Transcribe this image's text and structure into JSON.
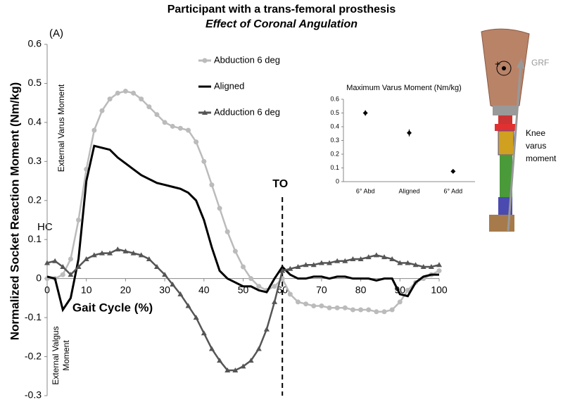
{
  "chart_data": [
    {
      "type": "line",
      "title": "Participant with a trans-femoral prosthesis",
      "subtitle": "Effect of Coronal Angulation",
      "panel_label": "(A)",
      "x_label": "Gait Cycle (%)",
      "y_label": "Normalized Socket Reaction Moment (Nm/kg)",
      "annotations": {
        "hc": "HC",
        "to": {
          "label": "TO",
          "x": 60
        },
        "varus": "External Varus Moment",
        "valgus": [
          "External Valgus",
          "Moment"
        ],
        "grf": "GRF",
        "knee": [
          "Knee",
          "varus",
          "moment"
        ]
      },
      "legend": "upper center",
      "xlim": [
        0,
        100
      ],
      "xticks": [
        0,
        10,
        20,
        30,
        40,
        50,
        60,
        70,
        80,
        90,
        100
      ],
      "ylim": [
        -0.3,
        0.6
      ],
      "yticks": [
        -0.3,
        -0.2,
        -0.1,
        0,
        0.1,
        0.2,
        0.3,
        0.4,
        0.5,
        0.6
      ],
      "x": [
        0,
        2,
        4,
        6,
        8,
        10,
        12,
        14,
        16,
        18,
        20,
        22,
        24,
        26,
        28,
        30,
        32,
        34,
        36,
        38,
        40,
        42,
        44,
        46,
        48,
        50,
        52,
        54,
        56,
        58,
        60,
        62,
        64,
        66,
        68,
        70,
        72,
        74,
        76,
        78,
        80,
        82,
        84,
        86,
        88,
        90,
        92,
        94,
        96,
        98,
        100
      ],
      "series": [
        {
          "name": "Abduction 6 deg",
          "color": "#bbbbbb",
          "marker": "circle",
          "values": [
            0,
            0,
            0.01,
            0.05,
            0.15,
            0.28,
            0.38,
            0.43,
            0.46,
            0.475,
            0.48,
            0.475,
            0.46,
            0.44,
            0.42,
            0.4,
            0.39,
            0.385,
            0.38,
            0.35,
            0.3,
            0.24,
            0.18,
            0.12,
            0.07,
            0.03,
            0,
            -0.02,
            -0.03,
            -0.02,
            0,
            -0.04,
            -0.06,
            -0.065,
            -0.07,
            -0.07,
            -0.075,
            -0.075,
            -0.075,
            -0.08,
            -0.08,
            -0.08,
            -0.085,
            -0.085,
            -0.08,
            -0.06,
            -0.03,
            -0.01,
            0,
            0.01,
            0.02
          ]
        },
        {
          "name": "Aligned",
          "color": "#000000",
          "marker": "none",
          "values": [
            0.005,
            0,
            -0.08,
            -0.05,
            0.05,
            0.25,
            0.34,
            0.335,
            0.33,
            0.31,
            0.295,
            0.28,
            0.265,
            0.255,
            0.245,
            0.24,
            0.235,
            0.23,
            0.22,
            0.2,
            0.15,
            0.08,
            0.02,
            0,
            -0.01,
            -0.02,
            -0.02,
            -0.03,
            -0.035,
            0,
            0.03,
            0.01,
            0,
            0,
            0.005,
            0.005,
            0,
            0.005,
            0.005,
            0,
            0,
            0,
            -0.005,
            0,
            0,
            -0.04,
            -0.045,
            -0.01,
            0.005,
            0.01,
            0.01
          ]
        },
        {
          "name": "Adduction 6 deg",
          "color": "#555555",
          "marker": "triangle",
          "values": [
            0.04,
            0.045,
            0.03,
            0.01,
            0.03,
            0.05,
            0.06,
            0.065,
            0.065,
            0.075,
            0.07,
            0.065,
            0.06,
            0.05,
            0.03,
            0.01,
            -0.015,
            -0.04,
            -0.07,
            -0.1,
            -0.14,
            -0.18,
            -0.21,
            -0.235,
            -0.235,
            -0.225,
            -0.21,
            -0.18,
            -0.13,
            -0.06,
            0.02,
            0.025,
            0.03,
            0.035,
            0.035,
            0.04,
            0.04,
            0.045,
            0.045,
            0.05,
            0.05,
            0.055,
            0.06,
            0.055,
            0.05,
            0.04,
            0.04,
            0.035,
            0.03,
            0.03,
            0.035
          ]
        }
      ]
    },
    {
      "type": "errorpoint",
      "title": "Maximum Varus Moment (Nm/kg)",
      "categories": [
        "6° Abd",
        "Aligned",
        "6° Add"
      ],
      "values": [
        0.5,
        0.355,
        0.075
      ],
      "errors": [
        0.02,
        0.025,
        0.005
      ],
      "color": "#000000",
      "ylim": [
        0,
        0.6
      ],
      "yticks": [
        0,
        0.1,
        0.2,
        0.3,
        0.4,
        0.5,
        0.6
      ]
    }
  ]
}
